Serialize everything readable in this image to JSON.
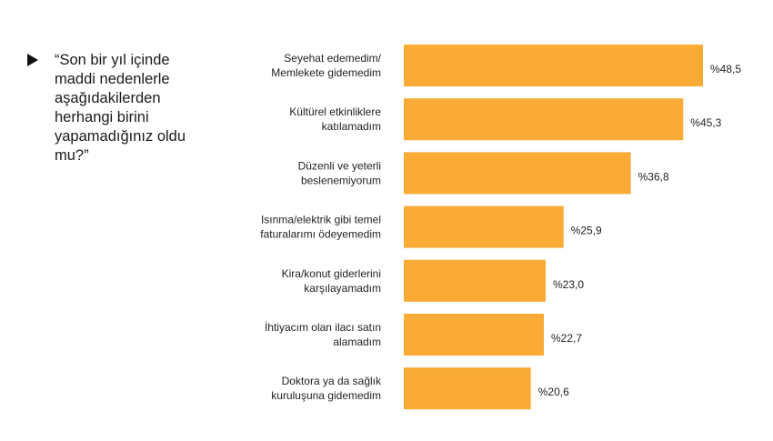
{
  "question": {
    "text": "“Son bir yıl içinde maddi nedenlerle aşağıdakilerden herhangi birini yapamadığınız oldu mu?”"
  },
  "colors": {
    "bar": "#F9AB35",
    "text": "#222222"
  },
  "chart_data": {
    "type": "bar",
    "orientation": "horizontal",
    "categories": [
      [
        "Seyehat edemedim/",
        "Memlekete gidemedim"
      ],
      [
        "Kültürel etkinliklere",
        "katılamadım"
      ],
      [
        "Düzenli ve yeterli",
        "beslenemiyorum"
      ],
      [
        "Isınma/elektrik gibi temel",
        "faturalarımı ödeyemedim"
      ],
      [
        "Kira/konut giderlerini",
        "karşılayamadım"
      ],
      [
        "İhtiyacım olan ilacı satın",
        "alamadım"
      ],
      [
        "Doktora ya da sağlık",
        "kuruluşuna gidemedim"
      ]
    ],
    "values": [
      48.5,
      45.3,
      36.8,
      25.9,
      23.0,
      22.7,
      20.6
    ],
    "value_labels": [
      "%48,5",
      "%45,3",
      "%36,8",
      "%25,9",
      "%23,0",
      "%22,7",
      "%20,6"
    ],
    "xlim": [
      0,
      48.5
    ],
    "grid": false,
    "legend": "none"
  }
}
